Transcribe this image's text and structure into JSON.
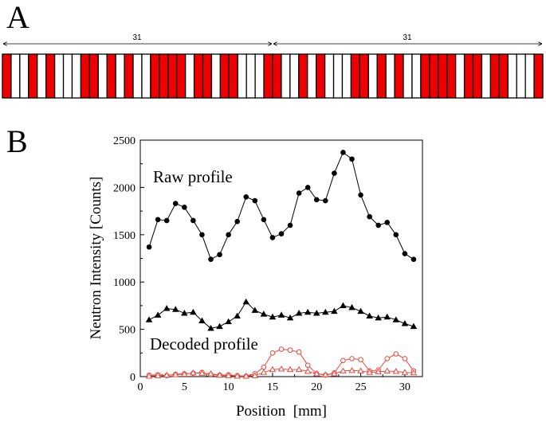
{
  "panel_a": {
    "letter": "A",
    "period_labels": [
      "31",
      "31"
    ],
    "mask_pattern": [
      1,
      0,
      0,
      1,
      0,
      1,
      0,
      0,
      0,
      1,
      1,
      0,
      1,
      0,
      1,
      0,
      0,
      1,
      1,
      1,
      1,
      0,
      1,
      1,
      0,
      1,
      1,
      0,
      0,
      0,
      1
    ],
    "colors": {
      "filled": "#ee0000",
      "empty": "#ffffff",
      "outline": "#000000"
    }
  },
  "panel_b": {
    "letter": "B"
  },
  "chart_data": {
    "type": "line",
    "xlabel": "Position  [mm]",
    "ylabel": "Neutron Intensity [Counts]",
    "xlim": [
      0,
      32
    ],
    "ylim": [
      0,
      2500
    ],
    "xticks": [
      0,
      5,
      10,
      15,
      20,
      25,
      30
    ],
    "yticks": [
      0,
      500,
      1000,
      1500,
      2000,
      2500
    ],
    "annotations": [
      "Raw profile",
      "Decoded profile"
    ],
    "x": [
      1,
      2,
      3,
      4,
      5,
      6,
      7,
      8,
      9,
      10,
      11,
      12,
      13,
      14,
      15,
      16,
      17,
      18,
      19,
      20,
      21,
      22,
      23,
      24,
      25,
      26,
      27,
      28,
      29,
      30,
      31
    ],
    "series": [
      {
        "name": "Raw profile (circles)",
        "marker": "circle-filled",
        "color": "#000000",
        "values": [
          1370,
          1660,
          1650,
          1830,
          1790,
          1650,
          1500,
          1240,
          1290,
          1500,
          1640,
          1900,
          1860,
          1660,
          1470,
          1510,
          1600,
          1940,
          2000,
          1870,
          1860,
          2150,
          2370,
          2300,
          1920,
          1690,
          1600,
          1630,
          1500,
          1300,
          1240
        ]
      },
      {
        "name": "Raw profile (triangles)",
        "marker": "triangle-filled",
        "color": "#000000",
        "values": [
          600,
          650,
          720,
          710,
          670,
          680,
          590,
          510,
          530,
          580,
          640,
          790,
          700,
          660,
          630,
          650,
          620,
          670,
          680,
          670,
          680,
          690,
          750,
          730,
          690,
          640,
          620,
          630,
          600,
          560,
          530
        ]
      },
      {
        "name": "Decoded profile (circles)",
        "marker": "circle-open",
        "color": "#e8483c",
        "values": [
          15,
          20,
          10,
          25,
          30,
          35,
          45,
          20,
          15,
          20,
          10,
          5,
          30,
          100,
          250,
          290,
          280,
          260,
          120,
          30,
          15,
          40,
          170,
          190,
          180,
          60,
          70,
          190,
          240,
          190,
          60
        ]
      },
      {
        "name": "Decoded profile (triangles)",
        "marker": "triangle-open",
        "color": "#e8483c",
        "values": [
          5,
          10,
          15,
          20,
          25,
          40,
          35,
          30,
          15,
          10,
          5,
          5,
          10,
          45,
          75,
          80,
          75,
          75,
          55,
          30,
          20,
          30,
          60,
          65,
          60,
          45,
          50,
          60,
          55,
          45,
          40
        ]
      }
    ]
  }
}
